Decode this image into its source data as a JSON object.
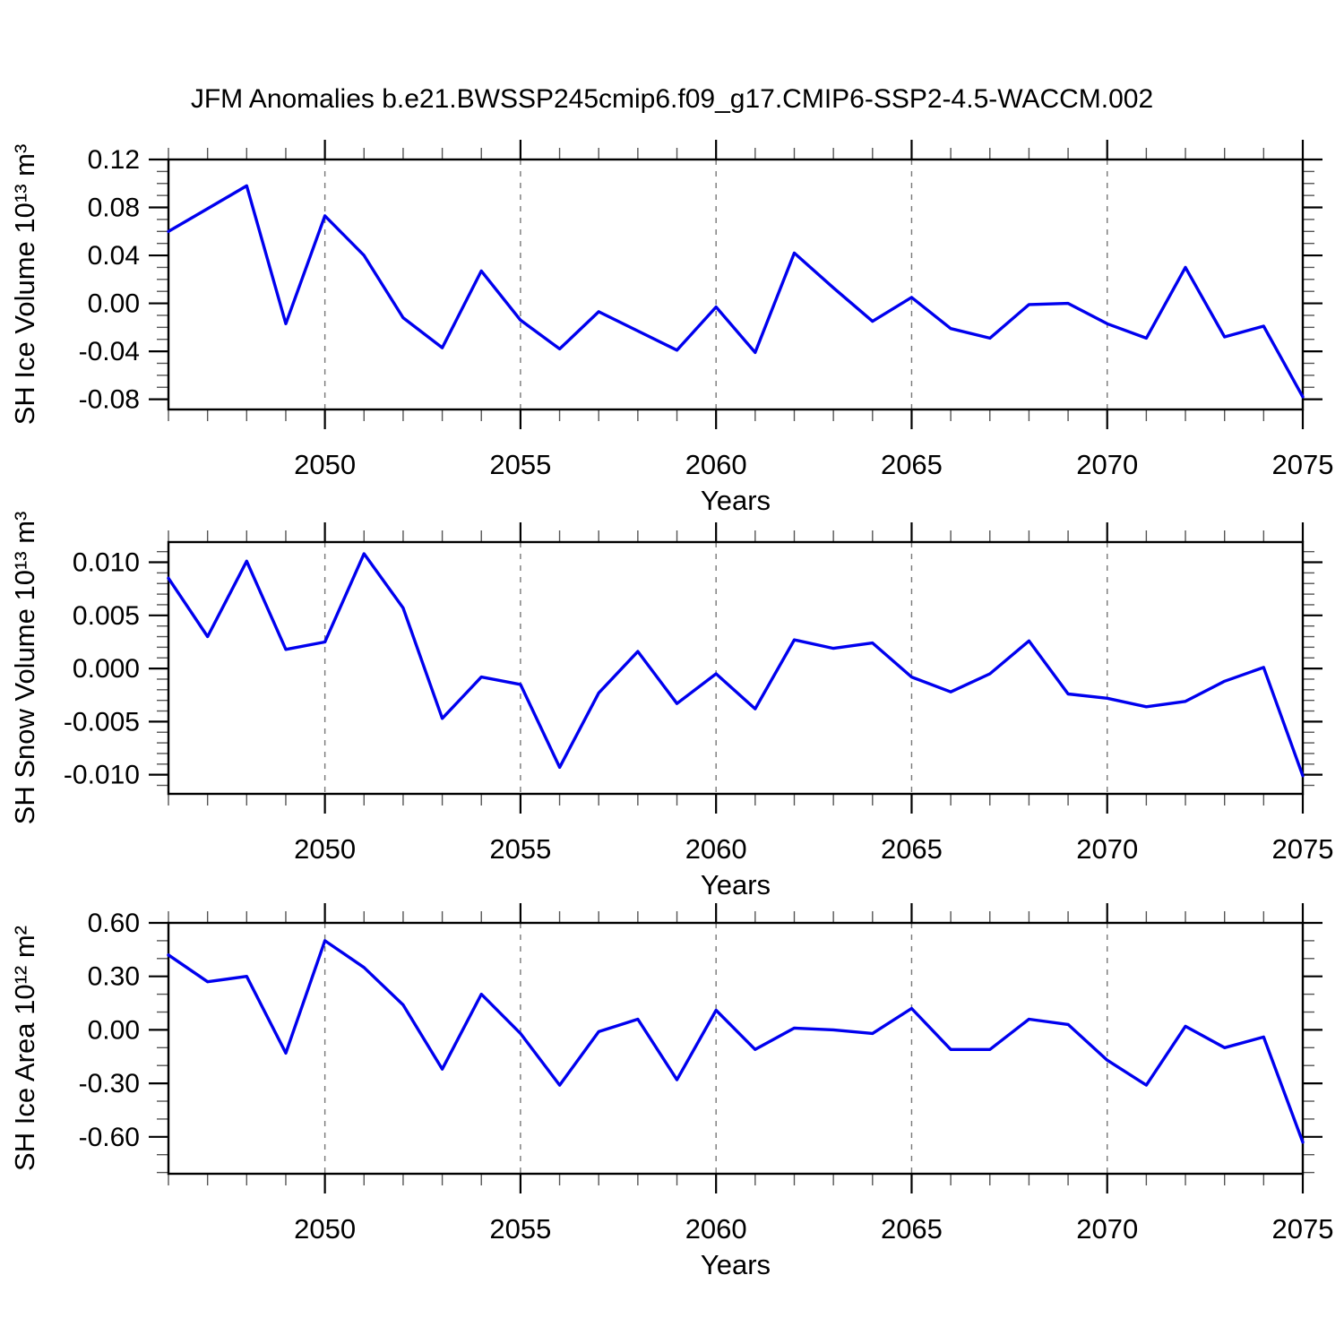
{
  "title": "JFM Anomalies b.e21.BWSSP245cmip6.f09_g17.CMIP6-SSP2-4.5-WACCM.002",
  "line_color": "#0000ee",
  "axis_color": "#000000",
  "gridline_color": "#777777",
  "chart_data": [
    {
      "type": "line",
      "ylabel": "SH Ice Volume 10¹³ m³",
      "xlabel": "Years",
      "xlim": [
        2046,
        2075
      ],
      "ylim": [
        -0.0885,
        0.12
      ],
      "y_major_ticks": [
        0.12,
        0.08,
        0.04,
        0.0,
        -0.04,
        -0.08
      ],
      "y_tick_labels": [
        "0.12",
        "0.08",
        "0.04",
        "0.00",
        "-0.04",
        "-0.08"
      ],
      "y_minor_step": 0.01,
      "x_major_ticks": [
        2050,
        2055,
        2060,
        2065,
        2070,
        2075
      ],
      "x_tick_labels": [
        "2050",
        "2055",
        "2060",
        "2065",
        "2070",
        "2075"
      ],
      "x_gridlines": [
        2050,
        2055,
        2060,
        2065,
        2070
      ],
      "x": [
        2046,
        2047,
        2048,
        2049,
        2050,
        2051,
        2052,
        2053,
        2054,
        2055,
        2056,
        2057,
        2058,
        2059,
        2060,
        2061,
        2062,
        2063,
        2064,
        2065,
        2066,
        2067,
        2068,
        2069,
        2070,
        2071,
        2072,
        2073,
        2074,
        2075
      ],
      "values": [
        0.06,
        0.079,
        0.098,
        -0.017,
        0.073,
        0.04,
        -0.012,
        -0.037,
        0.027,
        -0.014,
        -0.038,
        -0.007,
        -0.023,
        -0.039,
        -0.003,
        -0.041,
        0.042,
        0.013,
        -0.015,
        0.005,
        -0.021,
        -0.029,
        -0.001,
        0.0,
        -0.017,
        -0.029,
        0.03,
        -0.028,
        -0.019,
        -0.078
      ]
    },
    {
      "type": "line",
      "ylabel": "SH Snow Volume 10¹³ m³",
      "xlabel": "Years",
      "xlim": [
        2046,
        2075
      ],
      "ylim": [
        -0.0118,
        0.0119
      ],
      "y_major_ticks": [
        0.01,
        0.005,
        0.0,
        -0.005,
        -0.01
      ],
      "y_tick_labels": [
        "0.010",
        "0.005",
        "0.000",
        "-0.005",
        "-0.010"
      ],
      "y_minor_step": 0.001,
      "x_major_ticks": [
        2050,
        2055,
        2060,
        2065,
        2070,
        2075
      ],
      "x_tick_labels": [
        "2050",
        "2055",
        "2060",
        "2065",
        "2070",
        "2075"
      ],
      "x_gridlines": [
        2050,
        2055,
        2060,
        2065,
        2070
      ],
      "x": [
        2046,
        2047,
        2048,
        2049,
        2050,
        2051,
        2052,
        2053,
        2054,
        2055,
        2056,
        2057,
        2058,
        2059,
        2060,
        2061,
        2062,
        2063,
        2064,
        2065,
        2066,
        2067,
        2068,
        2069,
        2070,
        2071,
        2072,
        2073,
        2074,
        2075
      ],
      "values": [
        0.0085,
        0.003,
        0.0101,
        0.0018,
        0.0025,
        0.0108,
        0.0057,
        -0.0047,
        -0.0008,
        -0.0015,
        -0.0093,
        -0.0023,
        0.0016,
        -0.0033,
        -0.0005,
        -0.0038,
        0.0027,
        0.0019,
        0.0024,
        -0.0008,
        -0.0022,
        -0.0005,
        0.0026,
        -0.0024,
        -0.0028,
        -0.0036,
        -0.0031,
        -0.0012,
        0.0001,
        -0.0101
      ]
    },
    {
      "type": "line",
      "ylabel": "SH Ice Area 10¹² m²",
      "xlabel": "Years",
      "xlim": [
        2046,
        2075
      ],
      "ylim": [
        -0.807,
        0.6
      ],
      "y_major_ticks": [
        0.6,
        0.3,
        0.0,
        -0.3,
        -0.6
      ],
      "y_tick_labels": [
        "0.60",
        "0.30",
        "0.00",
        "-0.30",
        "-0.60"
      ],
      "y_minor_step": 0.1,
      "x_major_ticks": [
        2050,
        2055,
        2060,
        2065,
        2070,
        2075
      ],
      "x_tick_labels": [
        "2050",
        "2055",
        "2060",
        "2065",
        "2070",
        "2075"
      ],
      "x_gridlines": [
        2050,
        2055,
        2060,
        2065,
        2070
      ],
      "x": [
        2046,
        2047,
        2048,
        2049,
        2050,
        2051,
        2052,
        2053,
        2054,
        2055,
        2056,
        2057,
        2058,
        2059,
        2060,
        2061,
        2062,
        2063,
        2064,
        2065,
        2066,
        2067,
        2068,
        2069,
        2070,
        2071,
        2072,
        2073,
        2074,
        2075
      ],
      "values": [
        0.42,
        0.27,
        0.3,
        -0.13,
        0.5,
        0.35,
        0.14,
        -0.22,
        0.2,
        -0.02,
        -0.31,
        -0.01,
        0.06,
        -0.28,
        0.11,
        -0.11,
        0.01,
        0.0,
        -0.02,
        0.12,
        -0.11,
        -0.11,
        0.06,
        0.03,
        -0.17,
        -0.31,
        0.02,
        -0.1,
        -0.04,
        -0.63
      ]
    }
  ]
}
